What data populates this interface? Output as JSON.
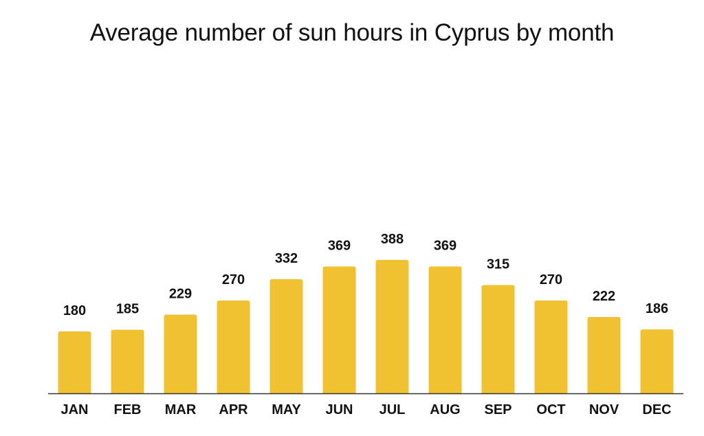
{
  "chart_data": {
    "type": "bar",
    "title": "Average number of sun hours in Cyprus by month",
    "xlabel": "",
    "ylabel": "",
    "categories": [
      "JAN",
      "FEB",
      "MAR",
      "APR",
      "MAY",
      "JUN",
      "JUL",
      "AUG",
      "SEP",
      "OCT",
      "NOV",
      "DEC"
    ],
    "values": [
      180,
      185,
      229,
      270,
      332,
      369,
      388,
      369,
      315,
      270,
      222,
      186
    ],
    "data_labels": [
      "180",
      "185",
      "229",
      "270",
      "332",
      "369",
      "388",
      "369",
      "315",
      "270",
      "222",
      "186"
    ],
    "ylim": [
      0,
      400
    ],
    "grid": false,
    "legend": "none",
    "colors": {
      "bar": "#F0C232",
      "axis": "#333333",
      "text": "#111111"
    }
  }
}
